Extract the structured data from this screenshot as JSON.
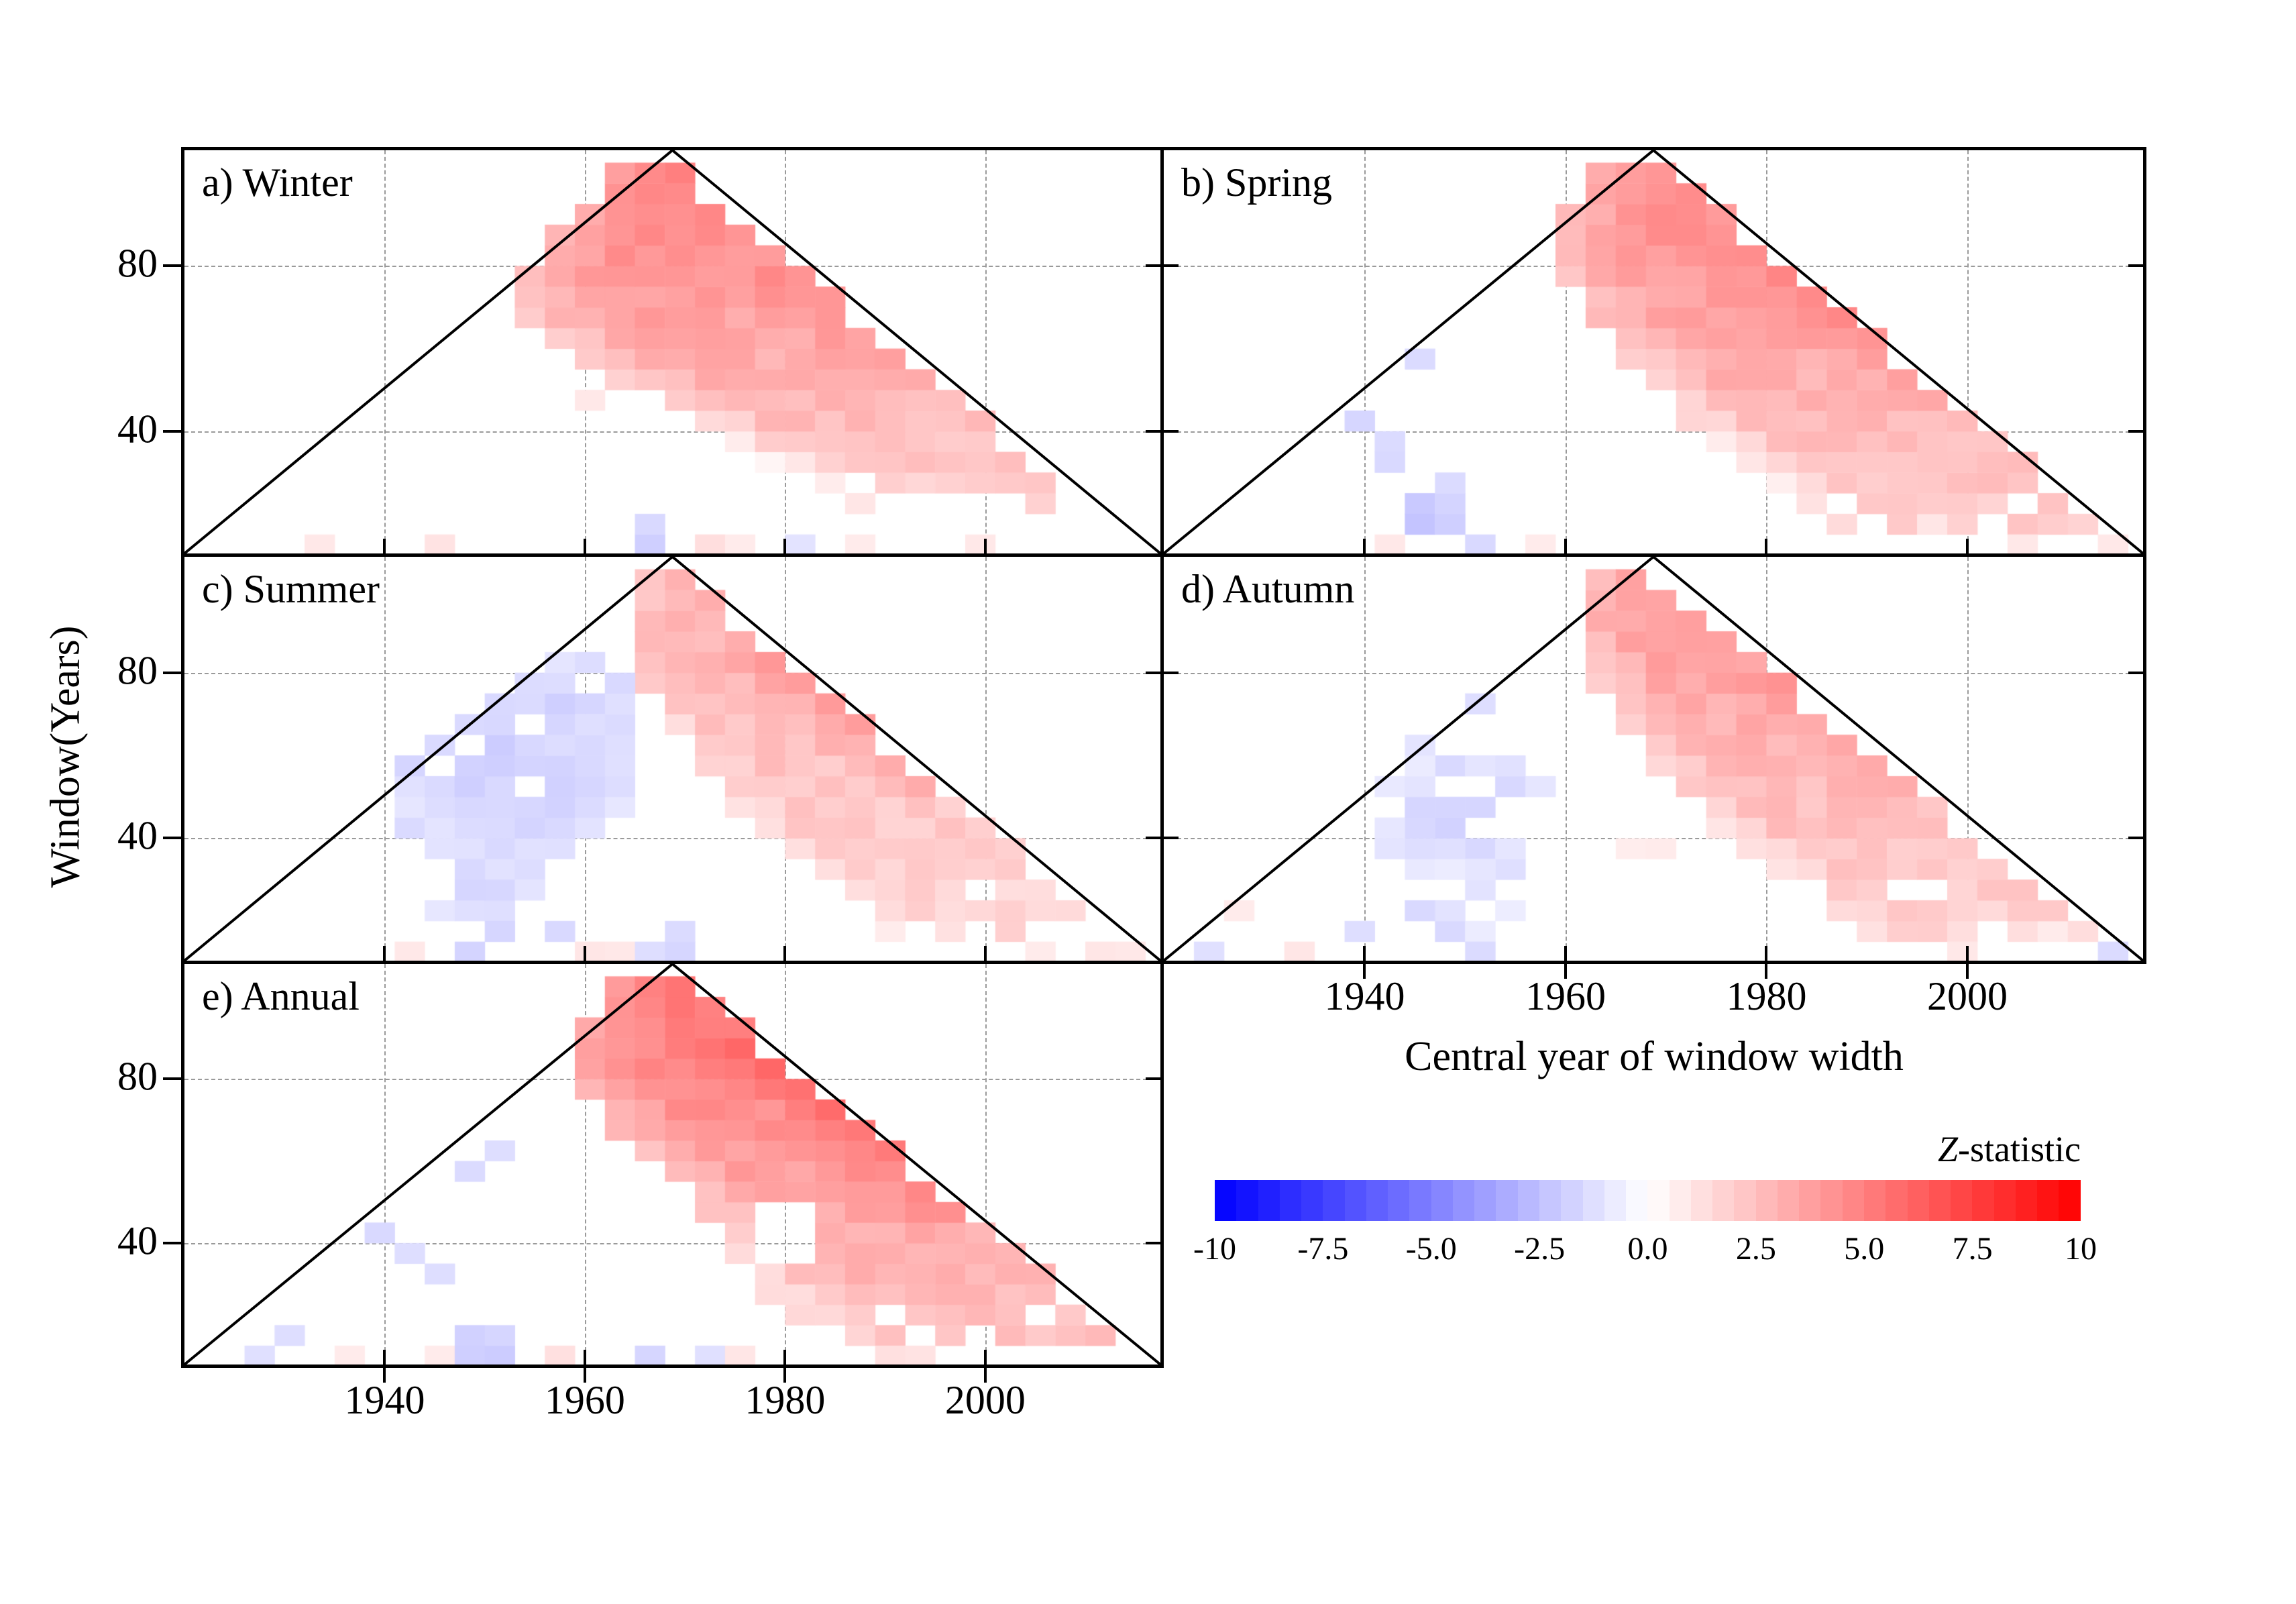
{
  "figure": {
    "y_axis_title": "Window(Years)",
    "x_axis_title": "Central year of window width",
    "colorbar": {
      "title_z": "Z",
      "title_suffix": "-statistic",
      "tick_labels": [
        "-10",
        "-7.5",
        "-5.0",
        "-2.5",
        "0.0",
        "2.5",
        "5.0",
        "7.5",
        "10"
      ],
      "z_min": -10,
      "z_max": 10,
      "segment_step": 0.5,
      "color_negative": "#0000FF",
      "color_zero": "#FFFFFF",
      "color_positive": "#FF0000"
    }
  },
  "chart_data": {
    "type": "heatmap",
    "xlabel": "Central year of window width",
    "ylabel": "Window(Years)",
    "z_label": "Z-statistic",
    "x_ticks": [
      1940,
      1960,
      1980,
      2000
    ],
    "y_ticks": [
      80,
      40
    ],
    "x_range": [
      1920,
      2017.5
    ],
    "y_range": [
      10.4,
      108
    ],
    "z_range": [
      -10,
      10
    ],
    "grid_step_years": 3,
    "grid_step_window": 5,
    "triangle": {
      "apex_year": 1968.75,
      "apex_window": 108,
      "base_window": 10.4
    },
    "panels": [
      {
        "id": "winter",
        "label": "a) Winter",
        "band": {
          "w_min": 18,
          "w_max": 106,
          "right_gap": 2,
          "left_edge": [
            [
              106,
              1964
            ],
            [
              95,
              1959
            ],
            [
              88,
              1956
            ],
            [
              76,
              1953
            ],
            [
              66,
              1954
            ],
            [
              56,
              1960
            ],
            [
              46,
              1968
            ],
            [
              36,
              1975
            ],
            [
              26,
              1983
            ],
            [
              18,
              1987
            ]
          ],
          "z_top": 5.2,
          "z_bottom": 1.6,
          "edge_fade": [
            1.6,
            8
          ],
          "right_boost": [
            0.6,
            55,
            82
          ],
          "density": [
            [
              30,
              1
            ],
            [
              24,
              0.8
            ],
            [
              0,
              0.6
            ]
          ]
        },
        "blobs": [],
        "holes": [],
        "speckles": [
          [
            1931,
            10,
            0.9
          ],
          [
            1945,
            11,
            1.1
          ],
          [
            1959,
            46,
            0.9
          ],
          [
            1966,
            10,
            -1.9
          ],
          [
            1966,
            15,
            -1.5
          ],
          [
            1972,
            10,
            1.3
          ],
          [
            1975,
            11,
            0.8
          ],
          [
            1981,
            10,
            -1.1
          ],
          [
            1987,
            10,
            0.8
          ],
          [
            1997,
            12,
            0.9
          ]
        ]
      },
      {
        "id": "spring",
        "label": "b) Spring",
        "band": {
          "w_min": 14,
          "w_max": 106,
          "right_gap": 1,
          "left_edge": [
            [
              106,
              1964
            ],
            [
              95,
              1961
            ],
            [
              85,
              1959
            ],
            [
              75,
              1961
            ],
            [
              65,
              1963
            ],
            [
              55,
              1967
            ],
            [
              45,
              1971
            ],
            [
              35,
              1977
            ],
            [
              25,
              1982
            ],
            [
              14,
              1986
            ]
          ],
          "z_top": 4.8,
          "z_bottom": 1.8,
          "edge_fade": [
            1.4,
            7
          ],
          "right_boost": [
            1.0,
            45,
            78
          ],
          "density": [
            [
              28,
              1
            ],
            [
              20,
              0.85
            ],
            [
              0,
              0.65
            ]
          ]
        },
        "blobs": [],
        "holes": [],
        "speckles": [
          [
            1944,
            55,
            -1.4
          ],
          [
            1937,
            38,
            -1.9
          ],
          [
            1938,
            41,
            -1.6
          ],
          [
            1940,
            34,
            -1.4
          ],
          [
            1941,
            30,
            -1.5
          ],
          [
            1944,
            18,
            -2.1
          ],
          [
            1945,
            15,
            -2.3
          ],
          [
            1947,
            15,
            -1.9
          ],
          [
            1946,
            21,
            -1.7
          ],
          [
            1947,
            25,
            -1.4
          ],
          [
            1949,
            11,
            -1.9
          ],
          [
            1951,
            12,
            -1.5
          ],
          [
            1941,
            10,
            0.9
          ],
          [
            1957,
            11,
            0.8
          ],
          [
            1996,
            15,
            1.0
          ],
          [
            2004,
            10,
            0.9
          ],
          [
            2012,
            12,
            0.9
          ]
        ]
      },
      {
        "id": "summer",
        "label": "c) Summer",
        "band": {
          "w_min": 14,
          "w_max": 106,
          "right_gap": 1.5,
          "left_edge": [
            [
              106,
              1965
            ],
            [
              95,
              1964
            ],
            [
              85,
              1964
            ],
            [
              75,
              1966
            ],
            [
              65,
              1969
            ],
            [
              55,
              1972
            ],
            [
              45,
              1976
            ],
            [
              35,
              1981
            ],
            [
              25,
              1987
            ],
            [
              14,
              1991
            ]
          ],
          "z_top": 3.2,
          "z_bottom": 1.5,
          "edge_fade": [
            1.0,
            5
          ],
          "right_boost": [
            1.2,
            52,
            85
          ],
          "density": [
            [
              30,
              1
            ],
            [
              22,
              0.85
            ],
            [
              0,
              0.6
            ]
          ]
        },
        "blobs": [
          {
            "cy": 1952,
            "cw": 57,
            "ry": 13,
            "rw": 26,
            "z": -1.9,
            "density": 0.88
          },
          {
            "cy": 1959,
            "cw": 74,
            "ry": 6,
            "rw": 9,
            "z": -2.0,
            "density": 0.75
          },
          {
            "cy": 1949,
            "cw": 30,
            "ry": 7,
            "rw": 12,
            "z": -1.6,
            "density": 0.65
          }
        ],
        "holes": [],
        "speckles": [
          [
            1940,
            12,
            0.9
          ],
          [
            1946,
            28,
            -1.5
          ],
          [
            1948,
            24,
            -1.6
          ],
          [
            1948,
            11,
            -1.7
          ],
          [
            1951,
            13,
            -1.6
          ],
          [
            1957,
            16,
            -1.5
          ],
          [
            1958,
            10,
            1.0
          ],
          [
            1962,
            12,
            0.9
          ],
          [
            1966,
            10,
            -1.3
          ],
          [
            1968,
            12,
            -1.6
          ],
          [
            1969,
            15,
            -1.4
          ],
          [
            2004,
            10,
            0.8
          ],
          [
            2010,
            12,
            1.0
          ],
          [
            2012,
            10,
            0.9
          ]
        ]
      },
      {
        "id": "autumn",
        "label": "d) Autumn",
        "band": {
          "w_min": 14,
          "w_max": 106,
          "right_gap": 2.5,
          "left_edge": [
            [
              106,
              1964
            ],
            [
              95,
              1962
            ],
            [
              85,
              1962
            ],
            [
              75,
              1964
            ],
            [
              65,
              1967
            ],
            [
              55,
              1970
            ],
            [
              45,
              1974
            ],
            [
              35,
              1979
            ],
            [
              25,
              1984
            ],
            [
              14,
              1990
            ]
          ],
          "z_top": 4.2,
          "z_bottom": 1.6,
          "edge_fade": [
            1.2,
            6
          ],
          "right_boost": [
            0.8,
            50,
            80
          ],
          "density": [
            [
              30,
              1
            ],
            [
              22,
              0.85
            ],
            [
              0,
              0.6
            ]
          ]
        },
        "blobs": [
          {
            "cy": 1950,
            "cw": 46,
            "ry": 9,
            "rw": 16,
            "z": -1.7,
            "density": 0.62
          },
          {
            "cy": 1951,
            "cw": 59,
            "ry": 7,
            "rw": 8,
            "z": -1.5,
            "density": 0.5
          },
          {
            "cy": 1950,
            "cw": 25,
            "ry": 5,
            "rw": 8,
            "z": -1.5,
            "density": 0.5
          }
        ],
        "holes": [],
        "speckles": [
          [
            1924,
            10,
            -1.2
          ],
          [
            1927,
            18,
            0.8
          ],
          [
            1931,
            10,
            1.0
          ],
          [
            1939,
            15,
            -1.3
          ],
          [
            1943,
            20,
            -1.5
          ],
          [
            1947,
            13,
            -1.5
          ],
          [
            1950,
            70,
            -1.3
          ],
          [
            1951,
            12,
            -1.4
          ],
          [
            1964,
            34,
            0.7
          ],
          [
            1967,
            37,
            0.8
          ],
          [
            1997,
            10,
            0.9
          ],
          [
            2007,
            14,
            0.8
          ],
          [
            2012,
            12,
            -1.4
          ]
        ]
      },
      {
        "id": "annual",
        "label": "e) Annual",
        "band": {
          "w_min": 14,
          "w_max": 106,
          "right_gap": 1,
          "left_edge": [
            [
              106,
              1963
            ],
            [
              95,
              1960
            ],
            [
              85,
              1959
            ],
            [
              75,
              1961
            ],
            [
              65,
              1964
            ],
            [
              55,
              1969
            ],
            [
              45,
              1972
            ],
            [
              35,
              1976
            ],
            [
              25,
              1979
            ],
            [
              14,
              1984
            ]
          ],
          "z_top": 5.6,
          "z_bottom": 2.2,
          "edge_fade": [
            1.6,
            8
          ],
          "right_boost": [
            1.2,
            45,
            88
          ],
          "density": [
            [
              26,
              1
            ],
            [
              18,
              0.85
            ],
            [
              0,
              0.7
            ]
          ]
        },
        "blobs": [],
        "holes": [
          {
            "cy": 1980,
            "cw": 42,
            "ry": 4.5,
            "rw": 8
          }
        ],
        "speckles": [
          [
            1926,
            11,
            -1.2
          ],
          [
            1928,
            15,
            -1.3
          ],
          [
            1935,
            10,
            0.8
          ],
          [
            1939,
            38,
            -1.5
          ],
          [
            1941,
            35,
            -1.3
          ],
          [
            1943,
            31,
            -1.3
          ],
          [
            1944,
            10,
            0.8
          ],
          [
            1947,
            55,
            -1.4
          ],
          [
            1947,
            15,
            -1.8
          ],
          [
            1947,
            11,
            -1.9
          ],
          [
            1949,
            11,
            -2.0
          ],
          [
            1950,
            17,
            -1.6
          ],
          [
            1951,
            60,
            -1.3
          ],
          [
            1956,
            12,
            1.1
          ],
          [
            1957,
            10,
            1.2
          ],
          [
            1964,
            10,
            -1.6
          ],
          [
            1971,
            10,
            -1.2
          ],
          [
            1975,
            10,
            1.0
          ],
          [
            1988,
            10,
            1.2
          ],
          [
            1991,
            11,
            1.1
          ]
        ]
      }
    ]
  }
}
